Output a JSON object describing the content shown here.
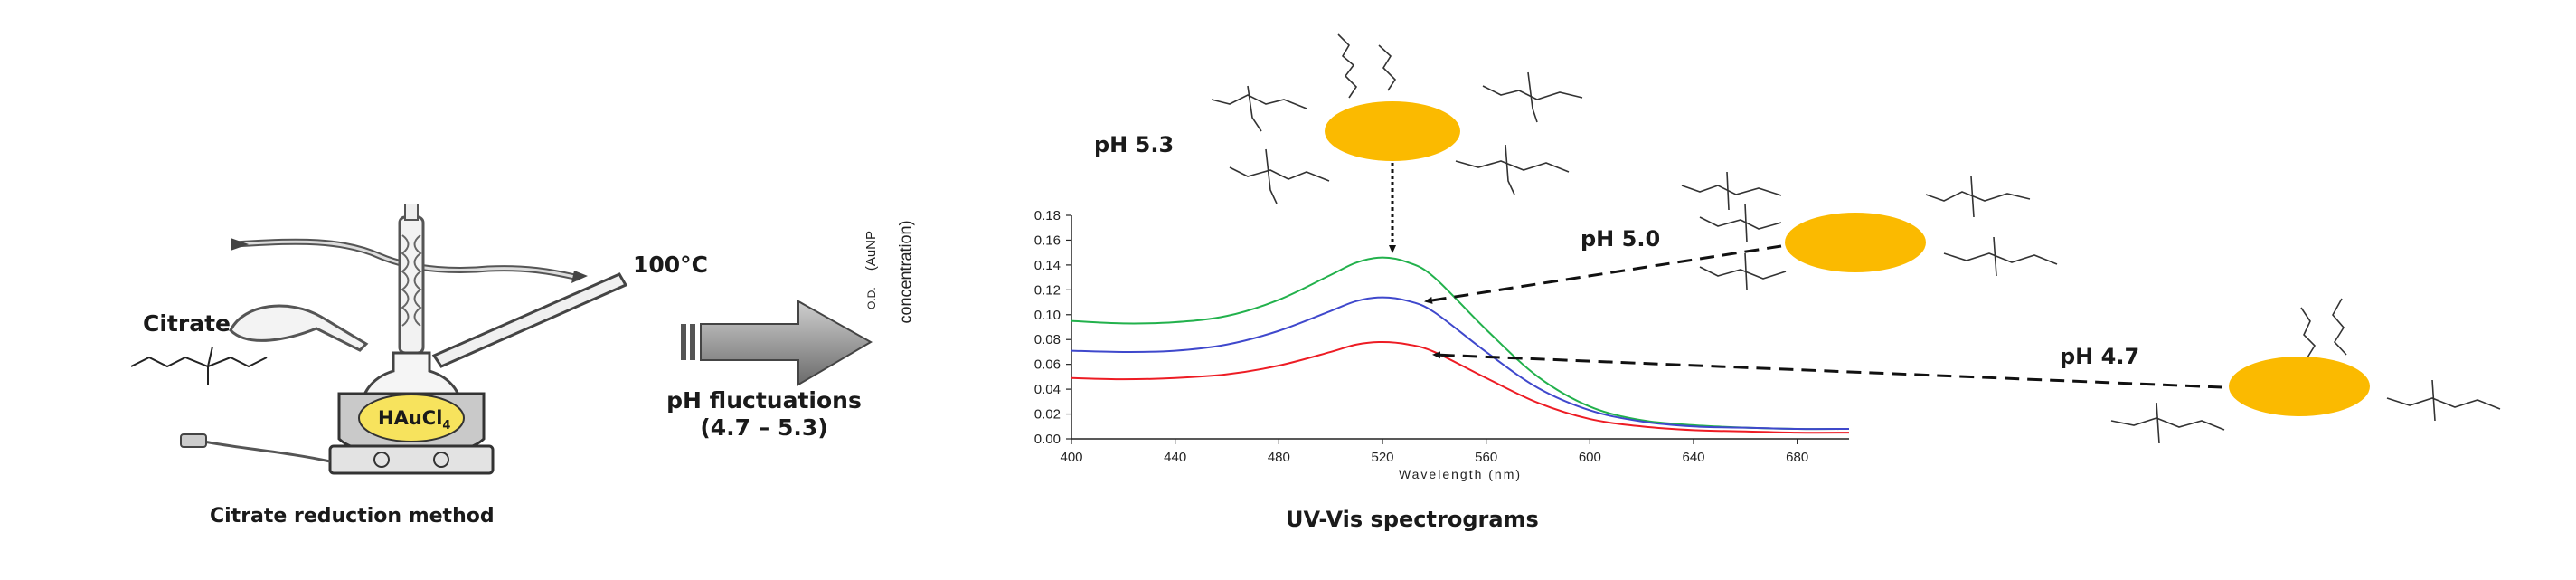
{
  "left_panel": {
    "citrate_label": "Citrate",
    "temperature_label": "100°C",
    "flask_content_main": "HAuCl",
    "flask_content_sub": "4",
    "caption": "Citrate reduction method"
  },
  "process_arrow": {
    "label_line1": "pH fluctuations",
    "label_line2": "(4.7 – 5.3)"
  },
  "spectrogram": {
    "caption": "UV-Vis spectrograms",
    "ylabel_line1": "O.D.",
    "ylabel_line2": "(AuNP",
    "ylabel_line3": "concentration)"
  },
  "nanoparticles": [
    {
      "ph_label": "pH 5.3",
      "color": "#FBBA00"
    },
    {
      "ph_label": "pH 5.0",
      "color": "#FBBA00"
    },
    {
      "ph_label": "pH 4.7",
      "color": "#FBBA00"
    }
  ],
  "chart_data": {
    "type": "line",
    "xlabel": "Wavelength (nm)",
    "ylabel": "O.D. (AuNP concentration)",
    "xlim": [
      400,
      700
    ],
    "ylim": [
      0,
      0.18
    ],
    "x_ticks": [
      "400",
      "440",
      "480",
      "520",
      "560",
      "600",
      "640",
      "680"
    ],
    "y_ticks": [
      "0.00",
      "0.02",
      "0.04",
      "0.06",
      "0.08",
      "0.10",
      "0.12",
      "0.14",
      "0.16",
      "0.18"
    ],
    "x": [
      400,
      420,
      440,
      460,
      480,
      500,
      510,
      520,
      530,
      540,
      560,
      580,
      600,
      620,
      640,
      660,
      680,
      700
    ],
    "series": [
      {
        "color": "#22b14c",
        "values": [
          0.095,
          0.093,
          0.094,
          0.099,
          0.112,
          0.132,
          0.142,
          0.146,
          0.142,
          0.13,
          0.088,
          0.05,
          0.026,
          0.015,
          0.011,
          0.009,
          0.008,
          0.008
        ]
      },
      {
        "color": "#3f48cc",
        "values": [
          0.071,
          0.07,
          0.071,
          0.076,
          0.087,
          0.103,
          0.111,
          0.114,
          0.111,
          0.102,
          0.07,
          0.041,
          0.023,
          0.014,
          0.01,
          0.009,
          0.008,
          0.008
        ]
      },
      {
        "color": "#ed1c24",
        "values": [
          0.049,
          0.048,
          0.049,
          0.052,
          0.059,
          0.07,
          0.076,
          0.078,
          0.076,
          0.07,
          0.049,
          0.029,
          0.016,
          0.01,
          0.007,
          0.006,
          0.005,
          0.005
        ]
      }
    ],
    "grid": false
  }
}
